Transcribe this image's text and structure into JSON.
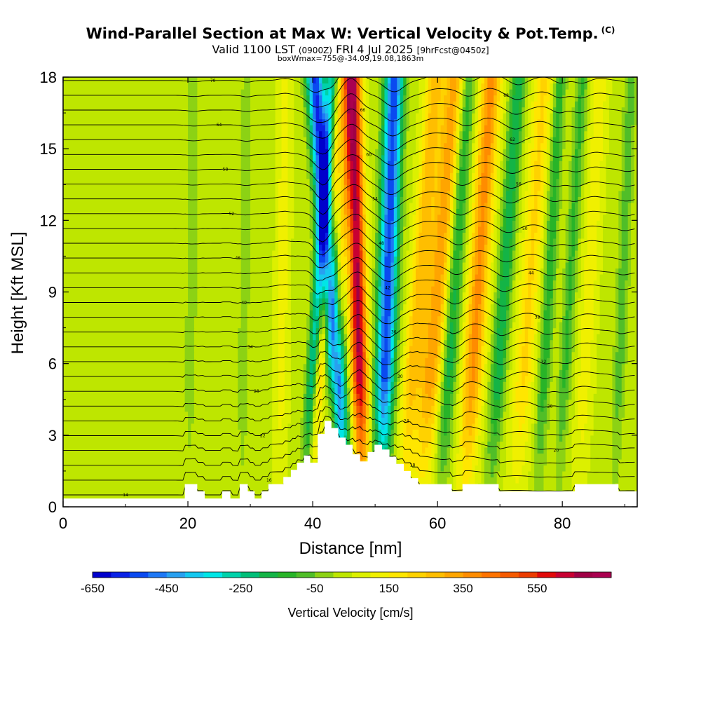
{
  "header": {
    "title": "Wind-Parallel Section at Max W: Vertical Velocity & Pot.Temp.",
    "copyright": "(C)",
    "valid_prefix": "Valid 1100 LST",
    "valid_utc": "(0900Z)",
    "valid_date": "FRI 4 Jul 2025",
    "forecast": "[9hrFcst@0450z]",
    "box_info": "boxWmax=755@-34.09,19.08,1863m"
  },
  "chart_data": {
    "type": "heatmap",
    "xlabel": "Distance [nm]",
    "ylabel": "Height [Kft MSL]",
    "xlim": [
      0,
      92
    ],
    "ylim": [
      0,
      18
    ],
    "x_ticks": [
      0,
      20,
      40,
      60,
      80
    ],
    "y_ticks": [
      0,
      3,
      6,
      9,
      12,
      15,
      18
    ],
    "color_variable": "Vertical Velocity [cm/s]",
    "contour_variable": "Potential Temperature",
    "colorbar": {
      "label": "Vertical Velocity [cm/s]",
      "min": -650,
      "max": 750,
      "step": 50,
      "tick_labels": [
        "-650",
        "-450",
        "-250",
        "-50",
        "150",
        "350",
        "550"
      ],
      "tick_values": [
        -650,
        -450,
        -250,
        -50,
        150,
        350,
        550
      ],
      "colors": [
        "#0000cc",
        "#0a22e6",
        "#0a4af0",
        "#1e78f5",
        "#28a0f0",
        "#14c8f0",
        "#00e6e6",
        "#00d2aa",
        "#00be78",
        "#14b446",
        "#28b428",
        "#50be28",
        "#8cd214",
        "#bee600",
        "#dcf000",
        "#f0f000",
        "#ffe600",
        "#ffd200",
        "#ffbe00",
        "#ffa500",
        "#ff8c00",
        "#ff7300",
        "#f55a00",
        "#eb3c00",
        "#e10a0a",
        "#c80032",
        "#a00046",
        "#aa0050"
      ]
    },
    "w_features": [
      {
        "x_base": 38.5,
        "lean": 0.25,
        "width": 0.9,
        "value": -300
      },
      {
        "x_base": 39.6,
        "lean": 0.3,
        "width": 0.9,
        "value": 180
      },
      {
        "x_base": 42.3,
        "lean": 0.22,
        "width": 0.8,
        "value": 150
      },
      {
        "x_base": 45.4,
        "lean": -0.28,
        "width": 1.4,
        "value": -600
      },
      {
        "x_base": 48.0,
        "lean": -0.09,
        "width": 1.3,
        "value": 620
      },
      {
        "x_base": 50.9,
        "lean": 0.12,
        "width": 1.5,
        "value": -580
      },
      {
        "x_base": 54.2,
        "lean": 0.3,
        "width": 1.4,
        "value": 220
      },
      {
        "x_base": 57.2,
        "lean": 0.32,
        "width": 2.0,
        "value": 300
      },
      {
        "x_base": 60.3,
        "lean": 0.25,
        "width": 1.3,
        "value": -250
      },
      {
        "x_base": 64.3,
        "lean": 0.24,
        "width": 1.6,
        "value": 330
      },
      {
        "x_base": 68.3,
        "lean": 0.26,
        "width": 1.2,
        "value": -230
      },
      {
        "x_base": 72.4,
        "lean": 0.26,
        "width": 1.6,
        "value": 170
      },
      {
        "x_base": 76.0,
        "lean": 0.2,
        "width": 1.0,
        "value": -180
      },
      {
        "x_base": 79.2,
        "lean": 0.22,
        "width": 1.0,
        "value": -150
      },
      {
        "x_base": 82.5,
        "lean": 0.2,
        "width": 1.2,
        "value": 100
      },
      {
        "x_base": 88.3,
        "lean": 0.15,
        "width": 1.0,
        "value": -120
      },
      {
        "x_base": 20.1,
        "lean": 0.05,
        "width": 1.0,
        "value": -70
      },
      {
        "x_base": 28.6,
        "lean": 0.05,
        "width": 0.8,
        "value": -90
      },
      {
        "x_base": 34.7,
        "lean": 0.05,
        "width": 1.0,
        "value": 90
      }
    ],
    "terrain": [
      [
        0,
        0.35
      ],
      [
        19.5,
        0.35
      ],
      [
        19.5,
        0.95
      ],
      [
        21.5,
        0.95
      ],
      [
        21.5,
        0.65
      ],
      [
        22.7,
        0.65
      ],
      [
        22.7,
        0.35
      ],
      [
        25.5,
        0.35
      ],
      [
        25.5,
        0.65
      ],
      [
        26.8,
        0.65
      ],
      [
        26.8,
        0.35
      ],
      [
        28.3,
        0.35
      ],
      [
        28.3,
        0.95
      ],
      [
        29.6,
        0.95
      ],
      [
        29.6,
        0.65
      ],
      [
        30.7,
        0.65
      ],
      [
        30.7,
        0.35
      ],
      [
        31.8,
        0.35
      ],
      [
        31.8,
        0.65
      ],
      [
        32.9,
        0.65
      ],
      [
        32.9,
        0.95
      ],
      [
        35.3,
        0.95
      ],
      [
        35.3,
        1.25
      ],
      [
        36.5,
        1.25
      ],
      [
        36.5,
        1.55
      ],
      [
        37.5,
        1.55
      ],
      [
        37.5,
        1.85
      ],
      [
        38.6,
        1.85
      ],
      [
        38.6,
        2.15
      ],
      [
        39.6,
        2.15
      ],
      [
        39.6,
        1.85
      ],
      [
        40.8,
        1.85
      ],
      [
        40.8,
        3.05
      ],
      [
        41.9,
        3.05
      ],
      [
        41.9,
        3.6
      ],
      [
        43.0,
        3.6
      ],
      [
        43.0,
        3.3
      ],
      [
        44.1,
        3.3
      ],
      [
        44.1,
        2.9
      ],
      [
        45.3,
        2.9
      ],
      [
        45.3,
        2.6
      ],
      [
        46.4,
        2.6
      ],
      [
        46.4,
        2.2
      ],
      [
        47.6,
        2.2
      ],
      [
        47.6,
        1.9
      ],
      [
        48.8,
        1.9
      ],
      [
        48.8,
        2.3
      ],
      [
        49.9,
        2.3
      ],
      [
        49.9,
        2.6
      ],
      [
        51.1,
        2.6
      ],
      [
        51.1,
        2.4
      ],
      [
        52.3,
        2.4
      ],
      [
        52.3,
        2.1
      ],
      [
        53.4,
        2.1
      ],
      [
        53.4,
        1.8
      ],
      [
        54.6,
        1.8
      ],
      [
        54.6,
        1.5
      ],
      [
        55.7,
        1.5
      ],
      [
        55.7,
        1.2
      ],
      [
        56.9,
        1.2
      ],
      [
        56.9,
        0.95
      ],
      [
        62.3,
        0.95
      ],
      [
        62.3,
        0.65
      ],
      [
        64.0,
        0.65
      ],
      [
        64.0,
        0.95
      ],
      [
        69.8,
        0.95
      ],
      [
        69.8,
        0.65
      ],
      [
        82.0,
        0.65
      ],
      [
        82.0,
        0.95
      ],
      [
        89.0,
        0.95
      ],
      [
        89.0,
        0.65
      ],
      [
        92,
        0.65
      ]
    ],
    "theta_contours": {
      "base_height": 0.5,
      "spacing": 0.62,
      "count": 29,
      "labels": [
        "14",
        "16",
        "18",
        "20",
        "22",
        "24",
        "26",
        "28",
        "30",
        "32",
        "34",
        "36",
        "38",
        "40",
        "42",
        "44",
        "46",
        "48",
        "50",
        "52",
        "54",
        "56",
        "58",
        "60",
        "62",
        "64",
        "66",
        "68",
        "70"
      ]
    }
  }
}
